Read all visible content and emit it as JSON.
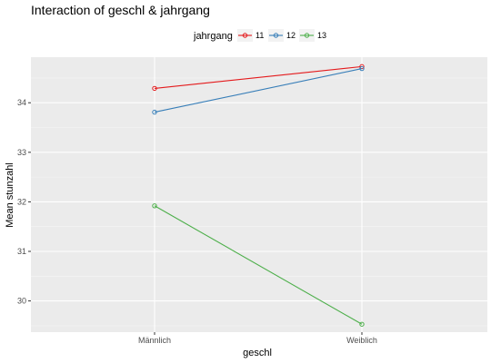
{
  "chart_data": {
    "type": "line",
    "title": "Interaction of geschl & jahrgang",
    "xlabel": "geschl",
    "ylabel": "Mean stunzahl",
    "categories": [
      "Männlich",
      "Weiblich"
    ],
    "ylim": [
      29.37,
      34.92
    ],
    "yticks": [
      30,
      31,
      32,
      33,
      34
    ],
    "yticks_labels": [
      "30",
      "31",
      "32",
      "33",
      "34"
    ],
    "grid": true,
    "legend_title": "jahrgang",
    "legend_position": "top",
    "series": [
      {
        "name": "11",
        "color": "#e41a1c",
        "values": [
          34.29,
          34.73
        ]
      },
      {
        "name": "12",
        "color": "#377eb8",
        "values": [
          33.81,
          34.69
        ]
      },
      {
        "name": "13",
        "color": "#4daf4a",
        "values": [
          31.92,
          29.53
        ]
      }
    ]
  }
}
